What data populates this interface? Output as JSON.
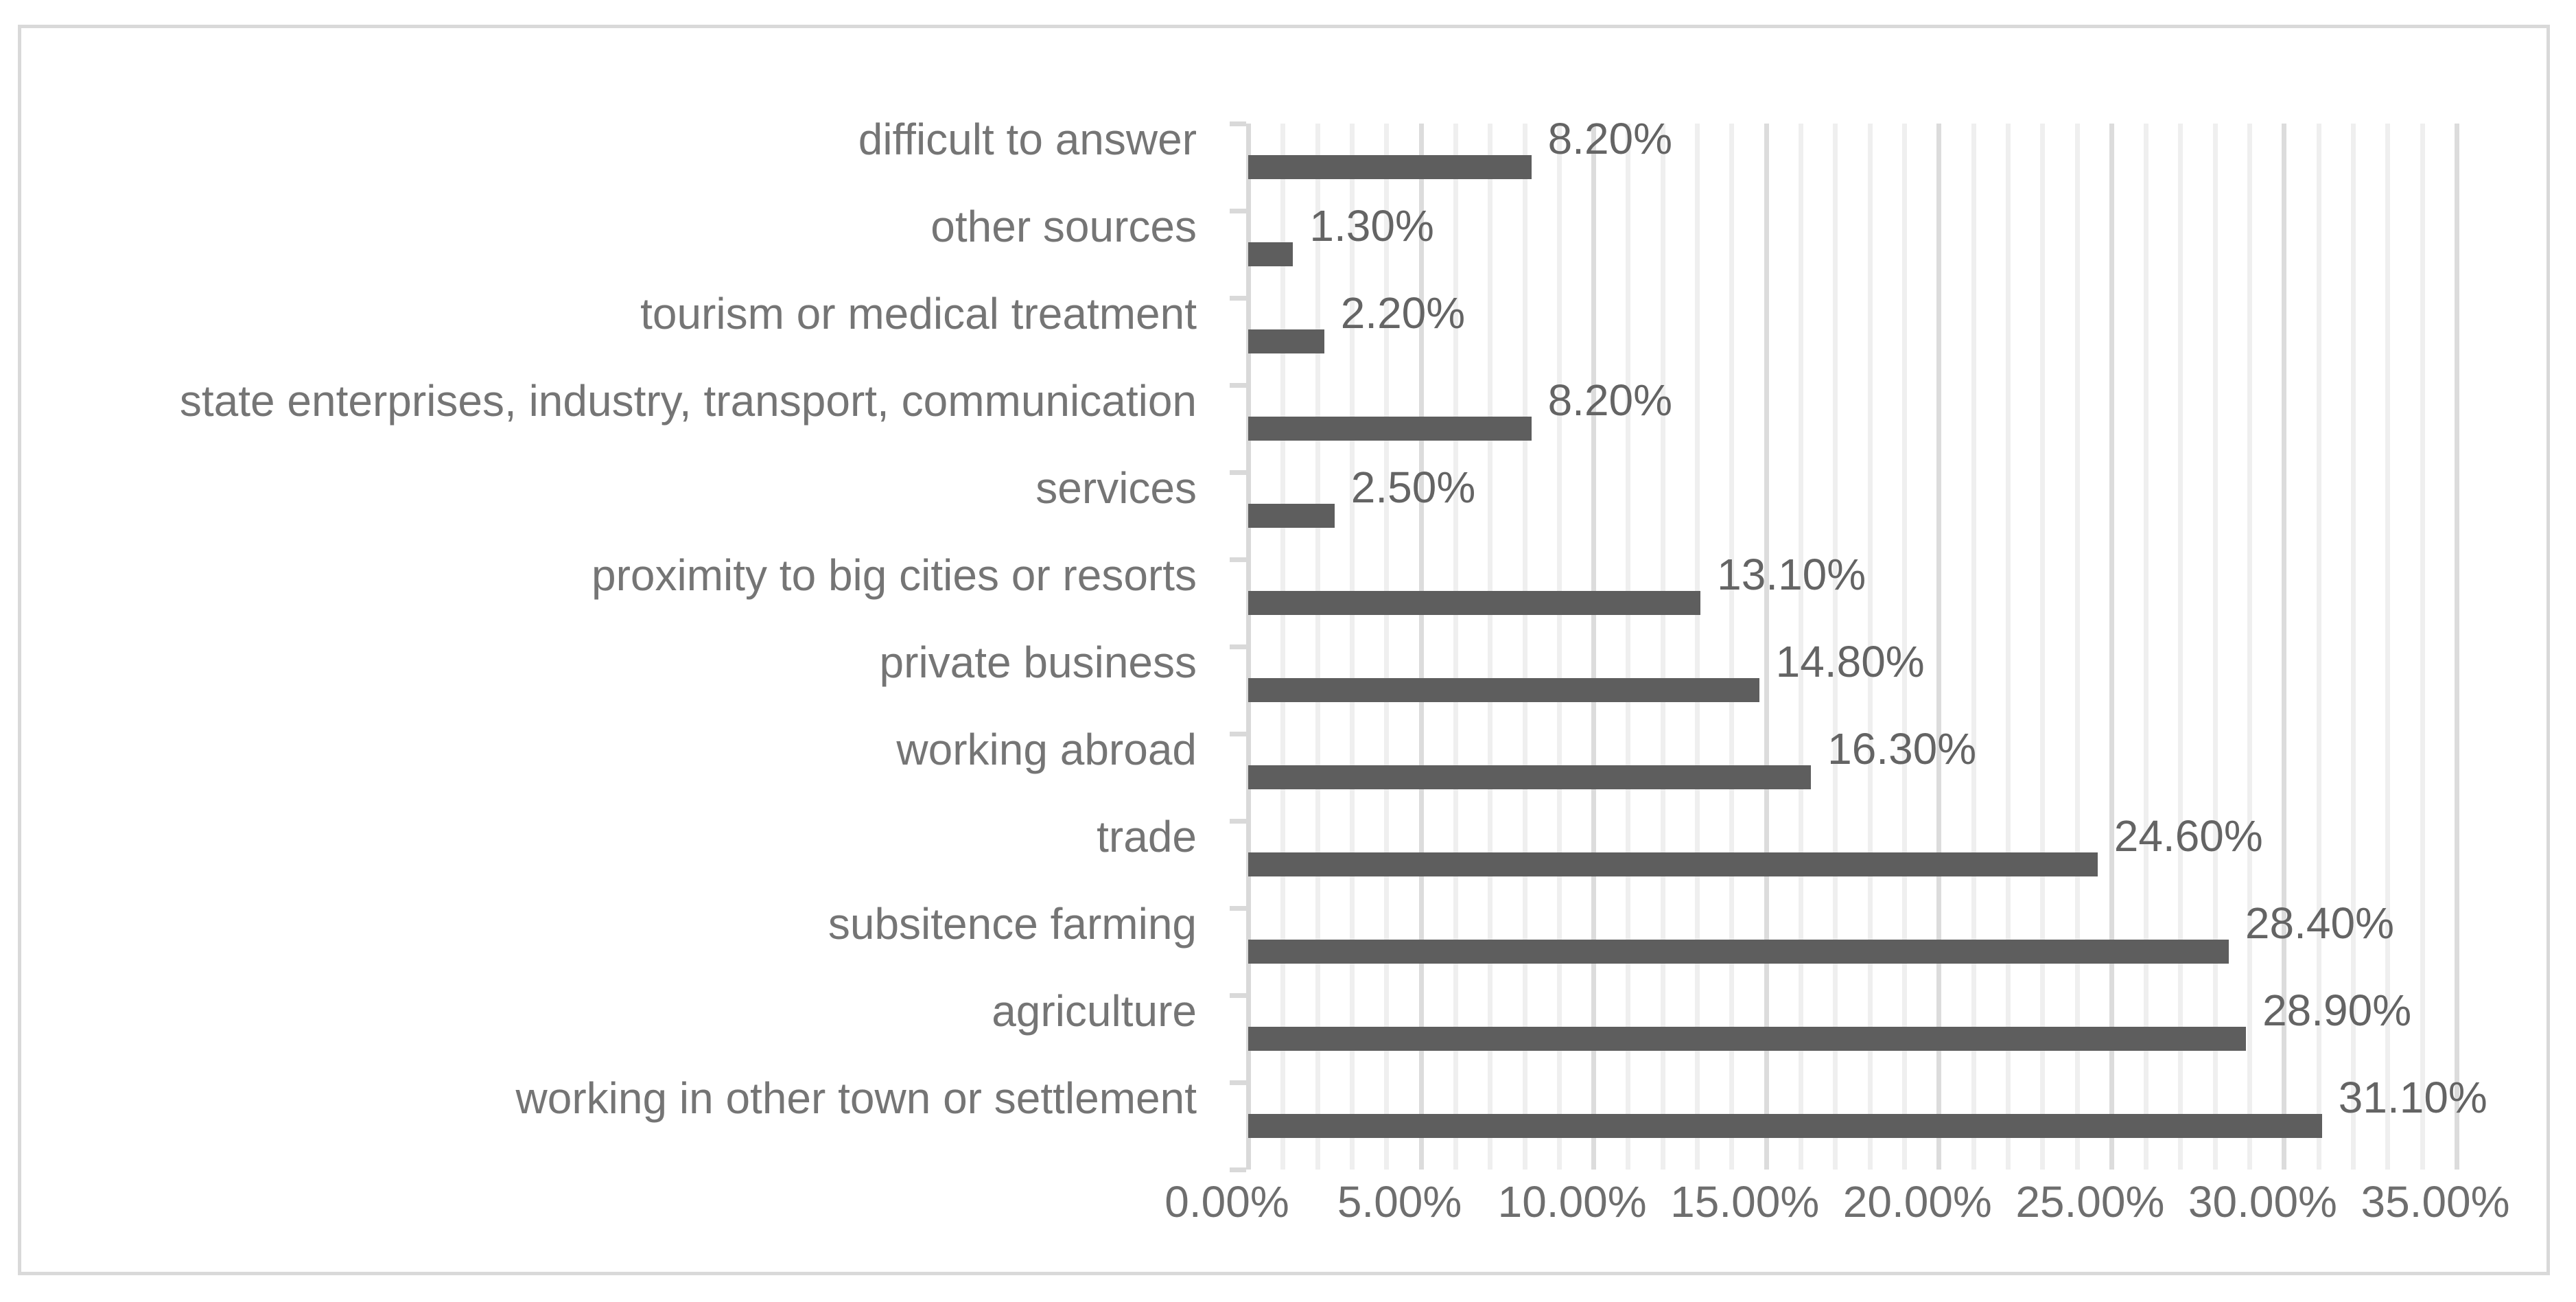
{
  "chart_data": {
    "type": "bar",
    "orientation": "horizontal",
    "title": "",
    "xlabel": "",
    "ylabel": "",
    "categories": [
      "difficult to answer",
      "other sources",
      "tourism or medical treatment",
      "state enterprises, industry, transport, communication",
      "services",
      "proximity to big cities or resorts",
      "private business",
      "working abroad",
      "trade",
      "subsitence farming",
      "agriculture",
      "working in other town or settlement"
    ],
    "values": [
      8.2,
      1.3,
      2.2,
      8.2,
      2.5,
      13.1,
      14.8,
      16.3,
      24.6,
      28.4,
      28.9,
      31.1
    ],
    "value_labels": [
      "8.20%",
      "1.30%",
      "2.20%",
      "8.20%",
      "2.50%",
      "13.10%",
      "14.80%",
      "16.30%",
      "24.60%",
      "28.40%",
      "28.90%",
      "31.10%"
    ],
    "xlim": [
      0,
      35
    ],
    "x_tick_labels": [
      "0.00%",
      "5.00%",
      "10.00%",
      "15.00%",
      "20.00%",
      "25.00%",
      "30.00%",
      "35.00%"
    ],
    "x_major_tick_interval": 5,
    "x_minor_gridline_interval": 1,
    "grid": "vertical, minor every 1% (light), major every 5% (darker)",
    "legend": "none"
  },
  "colors": {
    "background": "#FFFFFF",
    "frame_border": "#D9D9D9",
    "bar_fill": "#5E5E5E",
    "minor_gridline": "#EFEFEF",
    "major_gridline": "#DCDCDC",
    "axis_line": "#D9D9D9",
    "category_label_text": "#757575",
    "value_label_text": "#646464",
    "axis_label_text": "#6E6E6E"
  }
}
